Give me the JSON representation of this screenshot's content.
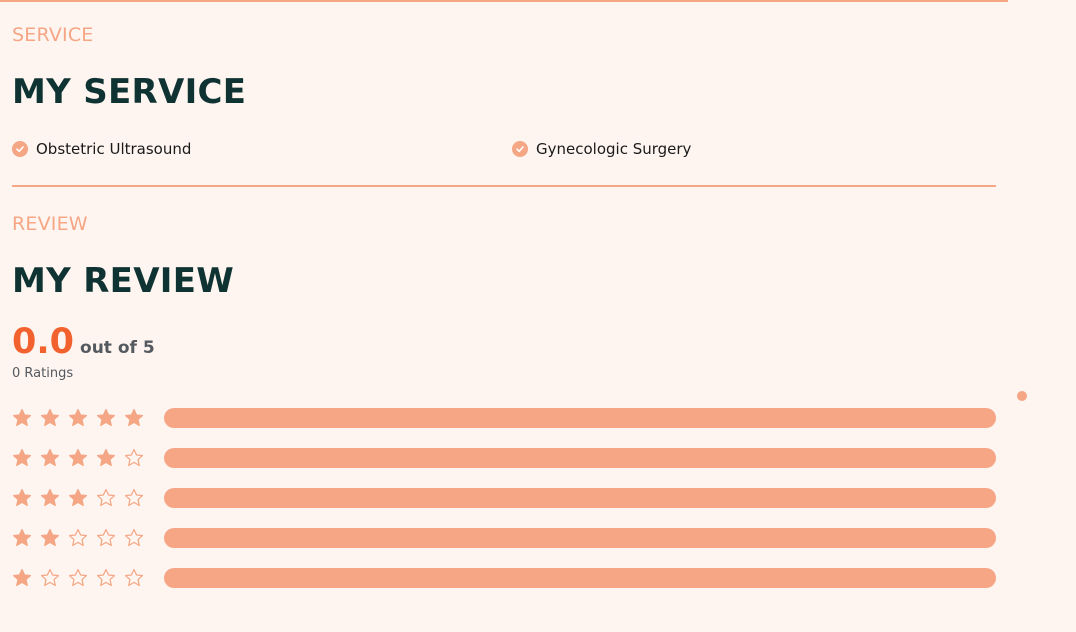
{
  "service_section": {
    "eyebrow": "SERVICE",
    "title": "MY SERVICE",
    "items": [
      {
        "label": "Obstetric Ultrasound"
      },
      {
        "label": "Gynecologic Surgery"
      }
    ]
  },
  "review_section": {
    "eyebrow": "REVIEW",
    "title": "MY REVIEW",
    "score": "0.0",
    "out_of_text": "out of 5",
    "ratings_count_text": "0 Ratings",
    "breakdown": [
      {
        "stars": 5,
        "fraction": 0
      },
      {
        "stars": 4,
        "fraction": 0
      },
      {
        "stars": 3,
        "fraction": 0
      },
      {
        "stars": 2,
        "fraction": 0
      },
      {
        "stars": 1,
        "fraction": 0
      }
    ]
  },
  "colors": {
    "accent": "#f5a684",
    "accent_strong": "#f2622e",
    "heading": "#0f3332",
    "background": "#fef5f1"
  },
  "icons": {
    "check": "check-circle-icon",
    "star_filled": "star-filled-icon",
    "star_outline": "star-outline-icon"
  }
}
